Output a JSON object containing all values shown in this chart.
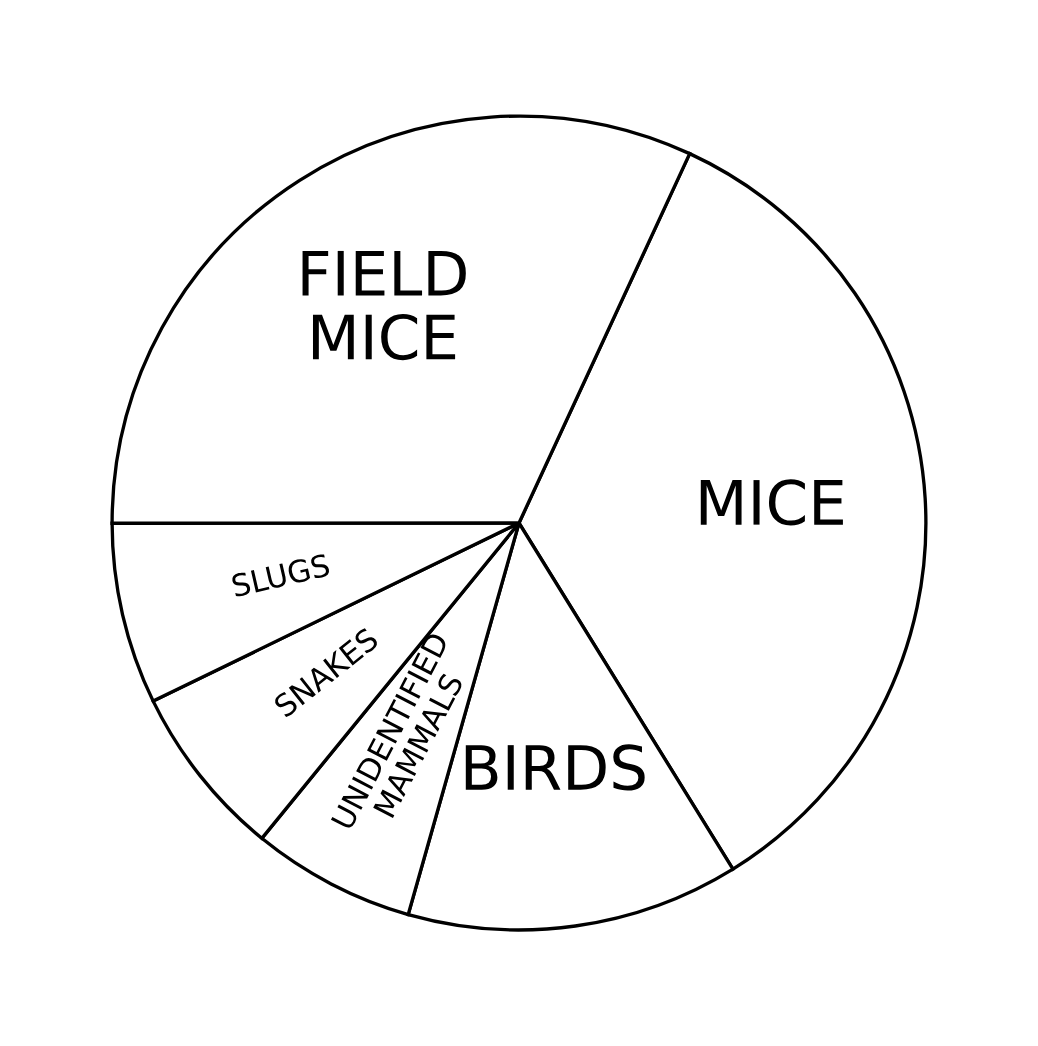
{
  "chart_data": {
    "type": "pie",
    "categories": [
      "MICE",
      "BIRDS",
      "UNIDENTIFIED\nMAMMALS",
      "SNAKES",
      "SLUGS",
      "FIELD\nMICE"
    ],
    "values": [
      34.3,
      13.2,
      6.5,
      6.9,
      7.2,
      31.9
    ],
    "colors": [
      "#ffffff",
      "#ffffff",
      "#ffffff",
      "#ffffff",
      "#ffffff",
      "#ffffff"
    ]
  }
}
